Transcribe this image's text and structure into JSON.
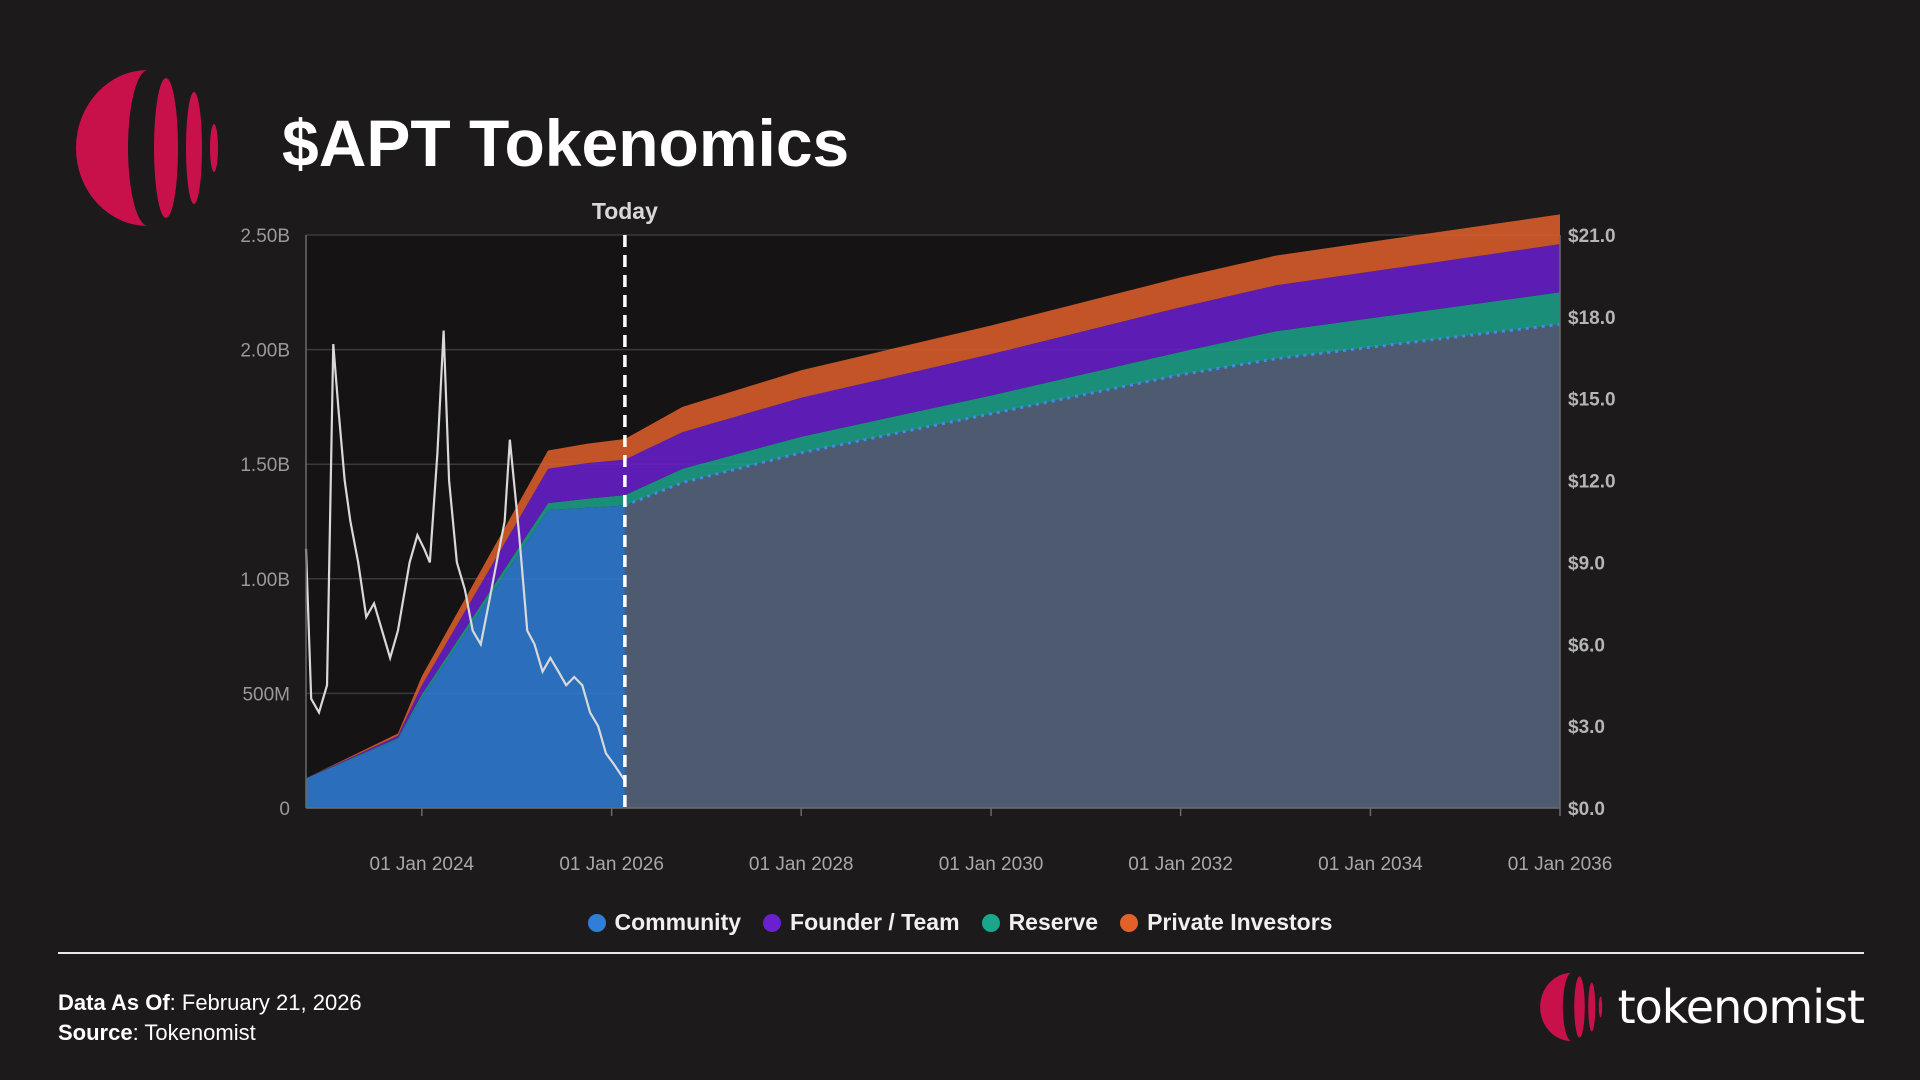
{
  "header": {
    "title": "$APT Tokenomics"
  },
  "colors": {
    "brand": "#c8104a",
    "community": "#2f7fd8",
    "founder": "#6a1fd0",
    "reserve": "#1ba58a",
    "private": "#e2602a",
    "price_line": "#d9d9d9"
  },
  "chart_data": {
    "type": "area",
    "annotation": "Today",
    "x_ticks": [
      "01 Jan 2024",
      "01 Jan 2026",
      "01 Jan 2028",
      "01 Jan 2030",
      "01 Jan 2032",
      "01 Jan 2034",
      "01 Jan 2036"
    ],
    "y_left_ticks": [
      "0",
      "500M",
      "1.00B",
      "1.50B",
      "2.00B",
      "2.50B"
    ],
    "y_right_ticks": [
      "$0.0",
      "$3.0",
      "$6.0",
      "$9.0",
      "$12.0",
      "$15.0",
      "$18.0",
      "$21.0"
    ],
    "y_left_range": [
      0,
      2500000000
    ],
    "y_right_range": [
      0,
      21
    ],
    "x_range": [
      "2022-10-12",
      "2036-01-01"
    ],
    "today": "2026-02-21",
    "legend": [
      "Community",
      "Founder / Team",
      "Reserve",
      "Private Investors"
    ],
    "x": [
      "2022-10-12",
      "2023-10-01",
      "2024-01-01",
      "2025-05-01",
      "2025-10-01",
      "2026-02-21",
      "2026-10-01",
      "2028-01-01",
      "2030-01-01",
      "2032-01-01",
      "2033-01-01",
      "2036-01-01"
    ],
    "series": [
      {
        "name": "Community",
        "values": [
          130000000,
          300000000,
          480000000,
          1300000000,
          1310000000,
          1320000000,
          1420000000,
          1550000000,
          1720000000,
          1890000000,
          1960000000,
          2110000000
        ]
      },
      {
        "name": "Reserve",
        "values": [
          0,
          5000000,
          15000000,
          30000000,
          40000000,
          45000000,
          60000000,
          70000000,
          80000000,
          100000000,
          120000000,
          140000000
        ]
      },
      {
        "name": "Founder / Team",
        "values": [
          0,
          10000000,
          40000000,
          150000000,
          155000000,
          155000000,
          160000000,
          170000000,
          180000000,
          195000000,
          200000000,
          210000000
        ]
      },
      {
        "name": "Private Investors",
        "values": [
          0,
          10000000,
          40000000,
          80000000,
          85000000,
          90000000,
          110000000,
          120000000,
          125000000,
          130000000,
          130000000,
          130000000
        ]
      }
    ],
    "price": {
      "name": "price",
      "x": [
        "2022-10-12",
        "2022-11-01",
        "2022-12-01",
        "2023-01-01",
        "2023-01-25",
        "2023-02-15",
        "2023-03-10",
        "2023-04-01",
        "2023-05-01",
        "2023-06-01",
        "2023-07-01",
        "2023-08-01",
        "2023-09-01",
        "2023-10-01",
        "2023-11-15",
        "2023-12-15",
        "2024-01-10",
        "2024-02-01",
        "2024-03-01",
        "2024-03-25",
        "2024-04-15",
        "2024-05-15",
        "2024-06-15",
        "2024-07-15",
        "2024-08-15",
        "2024-09-15",
        "2024-10-15",
        "2024-11-15",
        "2024-12-05",
        "2025-01-10",
        "2025-02-10",
        "2025-03-10",
        "2025-04-10",
        "2025-05-10",
        "2025-06-10",
        "2025-07-10",
        "2025-08-10",
        "2025-09-10",
        "2025-10-10",
        "2025-11-10",
        "2025-12-10",
        "2026-01-10",
        "2026-02-21"
      ],
      "values": [
        9.5,
        4.0,
        3.5,
        4.5,
        17.0,
        14.5,
        12.0,
        10.5,
        9.0,
        7.0,
        7.5,
        6.5,
        5.5,
        6.5,
        9.0,
        10.0,
        9.5,
        9.0,
        13.0,
        17.5,
        12.0,
        9.0,
        8.0,
        6.5,
        6.0,
        7.5,
        9.0,
        10.5,
        13.5,
        10.0,
        6.5,
        6.0,
        5.0,
        5.5,
        5.0,
        4.5,
        4.8,
        4.5,
        3.5,
        3.0,
        2.0,
        1.6,
        1.0
      ]
    }
  },
  "legend": {
    "items": [
      {
        "label": "Community",
        "color": "#2f7fd8"
      },
      {
        "label": "Founder / Team",
        "color": "#6a1fd0"
      },
      {
        "label": "Reserve",
        "color": "#1ba58a"
      },
      {
        "label": "Private Investors",
        "color": "#e2602a"
      }
    ]
  },
  "footer": {
    "data_label": "Data As Of",
    "data_value": ": February 21, 2026",
    "source_label": "Source",
    "source_value": ": Tokenomist"
  },
  "brand": {
    "name": "tokenomist",
    "watermark": "tokenomist"
  }
}
